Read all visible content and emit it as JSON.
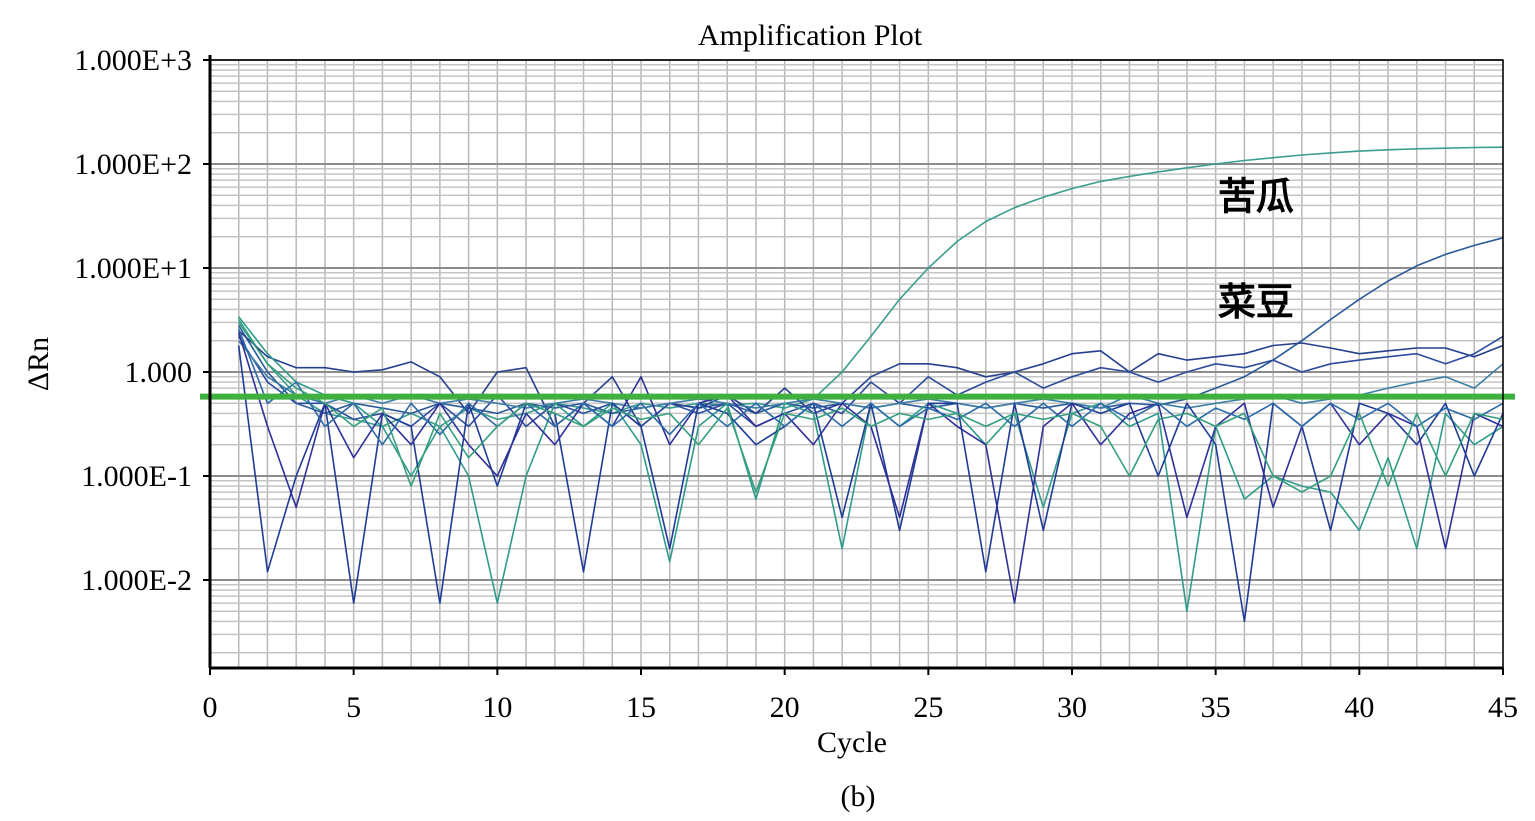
{
  "chart_data": {
    "type": "line",
    "title": "Amplification Plot",
    "xlabel": "Cycle",
    "ylabel": "ΔRn",
    "x_scale": "linear",
    "y_scale": "log",
    "xlim": [
      0,
      45
    ],
    "ylim": [
      0.003,
      1000
    ],
    "x_ticks": [
      0,
      5,
      10,
      15,
      20,
      25,
      30,
      35,
      40,
      45
    ],
    "y_ticks": [
      {
        "value": 1000,
        "label": "1.000E+3"
      },
      {
        "value": 100,
        "label": "1.000E+2"
      },
      {
        "value": 10,
        "label": "1.000E+1"
      },
      {
        "value": 1,
        "label": "1.000"
      },
      {
        "value": 0.1,
        "label": "1.000E-1"
      },
      {
        "value": 0.01,
        "label": "1.000E-2"
      }
    ],
    "grid": true,
    "threshold": {
      "value": 0.58,
      "color": "#3fb03f"
    },
    "annotations": [
      {
        "text": "苦瓜",
        "x": 36.4,
        "y": 50
      },
      {
        "text": "菜豆",
        "x": 36.4,
        "y": 4.8
      }
    ],
    "caption": "(b)",
    "series": [
      {
        "color": "#3a9e8e",
        "x": [
          1,
          2,
          3,
          4,
          5,
          6,
          7,
          8,
          9,
          10,
          11,
          12,
          13,
          14,
          15,
          16,
          17,
          18,
          19,
          20,
          21,
          22,
          23,
          24,
          25,
          26,
          27,
          28,
          29,
          30,
          31,
          32,
          33,
          34,
          35,
          36,
          37,
          38,
          39,
          40,
          41,
          42,
          43,
          44,
          45
        ],
        "values": [
          3.2,
          1.2,
          0.6,
          0.4,
          0.35,
          0.3,
          0.4,
          0.3,
          0.45,
          0.35,
          0.4,
          0.5,
          0.45,
          0.4,
          0.5,
          0.45,
          0.5,
          0.48,
          0.5,
          0.45,
          0.55,
          1.0,
          2.2,
          5.0,
          10,
          18,
          28,
          38,
          48,
          58,
          68,
          76,
          84,
          92,
          100,
          108,
          115,
          122,
          128,
          133,
          137,
          140,
          142,
          144,
          145
        ]
      },
      {
        "color": "#2a5a9a",
        "x": [
          1,
          2,
          3,
          4,
          5,
          6,
          7,
          8,
          9,
          10,
          11,
          12,
          13,
          14,
          15,
          16,
          17,
          18,
          19,
          20,
          21,
          22,
          23,
          24,
          25,
          26,
          27,
          28,
          29,
          30,
          31,
          32,
          33,
          34,
          35,
          36,
          37,
          38,
          39,
          40,
          41,
          42,
          43,
          44,
          45
        ],
        "values": [
          2.8,
          1.0,
          0.5,
          0.4,
          0.5,
          0.45,
          0.4,
          0.5,
          0.45,
          0.4,
          0.5,
          0.45,
          0.5,
          0.4,
          0.45,
          0.5,
          0.45,
          0.5,
          0.4,
          0.5,
          0.45,
          0.5,
          0.45,
          0.5,
          0.45,
          0.5,
          0.45,
          0.5,
          0.45,
          0.5,
          0.45,
          0.5,
          0.48,
          0.55,
          0.7,
          0.9,
          1.3,
          2.0,
          3.2,
          5.0,
          7.5,
          10.5,
          13.5,
          16.5,
          19.5
        ]
      },
      {
        "color": "#25408f",
        "x": [
          1,
          2,
          3,
          4,
          5,
          6,
          7,
          8,
          9,
          10,
          11,
          12,
          13,
          14,
          15,
          16,
          17,
          18,
          19,
          20,
          21,
          22,
          23,
          24,
          25,
          26,
          27,
          28,
          29,
          30,
          31,
          32,
          33,
          34,
          35,
          36,
          37,
          38,
          39,
          40,
          41,
          42,
          43,
          44,
          45
        ],
        "values": [
          2.5,
          1.4,
          1.1,
          1.1,
          1.0,
          1.05,
          1.25,
          0.9,
          0.4,
          1.0,
          1.1,
          0.3,
          0.5,
          0.9,
          0.3,
          0.5,
          0.45,
          0.6,
          0.4,
          0.7,
          0.4,
          0.5,
          0.9,
          1.2,
          1.2,
          1.1,
          0.9,
          1.0,
          1.2,
          1.5,
          1.6,
          1.0,
          1.5,
          1.3,
          1.4,
          1.5,
          1.8,
          1.9,
          1.7,
          1.5,
          1.6,
          1.7,
          1.7,
          1.4,
          1.8
        ]
      },
      {
        "color": "#2d4c9c",
        "x": [
          1,
          2,
          3,
          4,
          5,
          6,
          7,
          8,
          9,
          10,
          11,
          12,
          13,
          14,
          15,
          16,
          17,
          18,
          19,
          20,
          21,
          22,
          23,
          24,
          25,
          26,
          27,
          28,
          29,
          30,
          31,
          32,
          33,
          34,
          35,
          36,
          37,
          38,
          39,
          40,
          41,
          42,
          43,
          44,
          45
        ],
        "values": [
          2.2,
          0.8,
          0.5,
          0.5,
          0.35,
          0.4,
          0.3,
          0.5,
          0.3,
          0.6,
          0.3,
          0.5,
          0.4,
          0.5,
          0.3,
          0.5,
          0.4,
          0.5,
          0.3,
          0.4,
          0.5,
          0.4,
          0.8,
          0.5,
          0.9,
          0.6,
          0.8,
          1.0,
          0.7,
          0.9,
          1.1,
          1.0,
          0.8,
          1.0,
          1.2,
          1.1,
          1.3,
          1.0,
          1.2,
          1.3,
          1.4,
          1.5,
          1.2,
          1.5,
          2.2
        ]
      },
      {
        "color": "#3d7fa6",
        "x": [
          1,
          2,
          3,
          4,
          5,
          6,
          7,
          8,
          9,
          10,
          11,
          12,
          13,
          14,
          15,
          16,
          17,
          18,
          19,
          20,
          21,
          22,
          23,
          24,
          25,
          26,
          27,
          28,
          29,
          30,
          31,
          32,
          33,
          34,
          35,
          36,
          37,
          38,
          39,
          40,
          41,
          42,
          43,
          44,
          45
        ],
        "values": [
          2.0,
          0.9,
          0.6,
          0.5,
          0.6,
          0.5,
          0.6,
          0.5,
          0.55,
          0.5,
          0.45,
          0.5,
          0.55,
          0.5,
          0.45,
          0.5,
          0.55,
          0.5,
          0.45,
          0.5,
          0.55,
          0.5,
          0.45,
          0.5,
          0.55,
          0.5,
          0.45,
          0.5,
          0.55,
          0.5,
          0.45,
          0.6,
          0.5,
          0.45,
          0.5,
          0.55,
          0.6,
          0.5,
          0.55,
          0.6,
          0.7,
          0.8,
          0.9,
          0.7,
          1.2
        ]
      },
      {
        "color": "#2f9c8a",
        "x": [
          1,
          2,
          3,
          4,
          5,
          6,
          7,
          8,
          9,
          10,
          11,
          12,
          13,
          14,
          15,
          16,
          17,
          18,
          19,
          20,
          21,
          22,
          23,
          24,
          25,
          26,
          27,
          28,
          29,
          30,
          31,
          32,
          33,
          34,
          35,
          36,
          37,
          38,
          39,
          40,
          41,
          42,
          43,
          44,
          45
        ],
        "values": [
          3.4,
          1.5,
          0.8,
          0.6,
          0.5,
          0.3,
          0.1,
          0.3,
          0.1,
          0.006,
          0.1,
          0.5,
          0.3,
          0.5,
          0.2,
          0.015,
          0.3,
          0.5,
          0.06,
          0.5,
          0.4,
          0.02,
          0.5,
          0.3,
          0.5,
          0.4,
          0.2,
          0.4,
          0.05,
          0.4,
          0.5,
          0.3,
          0.4,
          0.005,
          0.3,
          0.06,
          0.1,
          0.08,
          0.07,
          0.03,
          0.15,
          0.02,
          0.4,
          0.2,
          0.3
        ]
      },
      {
        "color": "#1f3c96",
        "x": [
          1,
          2,
          3,
          4,
          5,
          6,
          7,
          8,
          9,
          10,
          11,
          12,
          13,
          14,
          15,
          16,
          17,
          18,
          19,
          20,
          21,
          22,
          23,
          24,
          25,
          26,
          27,
          28,
          29,
          30,
          31,
          32,
          33,
          34,
          35,
          36,
          37,
          38,
          39,
          40,
          41,
          42,
          43,
          44,
          45
        ],
        "values": [
          1.8,
          0.012,
          0.1,
          0.5,
          0.006,
          0.4,
          0.3,
          0.006,
          0.5,
          0.08,
          0.5,
          0.4,
          0.012,
          0.5,
          0.3,
          0.02,
          0.5,
          0.4,
          0.2,
          0.3,
          0.5,
          0.04,
          0.5,
          0.03,
          0.5,
          0.5,
          0.012,
          0.5,
          0.03,
          0.5,
          0.4,
          0.5,
          0.1,
          0.5,
          0.2,
          0.004,
          0.5,
          0.3,
          0.03,
          0.5,
          0.4,
          0.2,
          0.5,
          0.1,
          0.4
        ]
      },
      {
        "color": "#30309a",
        "x": [
          1,
          2,
          3,
          4,
          5,
          6,
          7,
          8,
          9,
          10,
          11,
          12,
          13,
          14,
          15,
          16,
          17,
          18,
          19,
          20,
          21,
          22,
          23,
          24,
          25,
          26,
          27,
          28,
          29,
          30,
          31,
          32,
          33,
          34,
          35,
          36,
          37,
          38,
          39,
          40,
          41,
          42,
          43,
          44,
          45
        ],
        "values": [
          2.4,
          0.3,
          0.05,
          0.5,
          0.15,
          0.4,
          0.2,
          0.5,
          0.2,
          0.1,
          0.4,
          0.2,
          0.5,
          0.3,
          0.9,
          0.2,
          0.5,
          0.6,
          0.3,
          0.4,
          0.2,
          0.5,
          0.3,
          0.04,
          0.5,
          0.3,
          0.2,
          0.006,
          0.3,
          0.5,
          0.2,
          0.4,
          0.5,
          0.04,
          0.3,
          0.5,
          0.05,
          0.3,
          0.5,
          0.2,
          0.4,
          0.3,
          0.02,
          0.4,
          0.3
        ]
      },
      {
        "color": "#2a6aa8",
        "x": [
          1,
          2,
          3,
          4,
          5,
          6,
          7,
          8,
          9,
          10,
          11,
          12,
          13,
          14,
          15,
          16,
          17,
          18,
          19,
          20,
          21,
          22,
          23,
          24,
          25,
          26,
          27,
          28,
          29,
          30,
          31,
          32,
          33,
          34,
          35,
          36,
          37,
          38,
          39,
          40,
          41,
          42,
          43,
          44,
          45
        ],
        "values": [
          2.6,
          0.5,
          0.8,
          0.3,
          0.5,
          0.2,
          0.5,
          0.25,
          0.5,
          0.3,
          0.5,
          0.3,
          0.5,
          0.3,
          0.5,
          0.25,
          0.5,
          0.3,
          0.5,
          0.3,
          0.5,
          0.3,
          0.5,
          0.3,
          0.45,
          0.35,
          0.5,
          0.3,
          0.5,
          0.3,
          0.5,
          0.35,
          0.5,
          0.3,
          0.45,
          0.35,
          0.5,
          0.3,
          0.5,
          0.35,
          0.5,
          0.3,
          0.45,
          0.35,
          0.5
        ]
      },
      {
        "color": "#35a07e",
        "x": [
          1,
          2,
          3,
          4,
          5,
          6,
          7,
          8,
          9,
          10,
          11,
          12,
          13,
          14,
          15,
          16,
          17,
          18,
          19,
          20,
          21,
          22,
          23,
          24,
          25,
          26,
          27,
          28,
          29,
          30,
          31,
          32,
          33,
          34,
          35,
          36,
          37,
          38,
          39,
          40,
          41,
          42,
          43,
          44,
          45
        ],
        "values": [
          3.0,
          1.2,
          0.7,
          0.5,
          0.3,
          0.45,
          0.08,
          0.4,
          0.15,
          0.3,
          0.5,
          0.4,
          0.3,
          0.45,
          0.35,
          0.4,
          0.2,
          0.45,
          0.07,
          0.4,
          0.35,
          0.45,
          0.3,
          0.4,
          0.35,
          0.4,
          0.3,
          0.4,
          0.35,
          0.4,
          0.3,
          0.1,
          0.35,
          0.4,
          0.3,
          0.4,
          0.1,
          0.07,
          0.1,
          0.4,
          0.08,
          0.4,
          0.1,
          0.4,
          0.35
        ]
      }
    ]
  }
}
